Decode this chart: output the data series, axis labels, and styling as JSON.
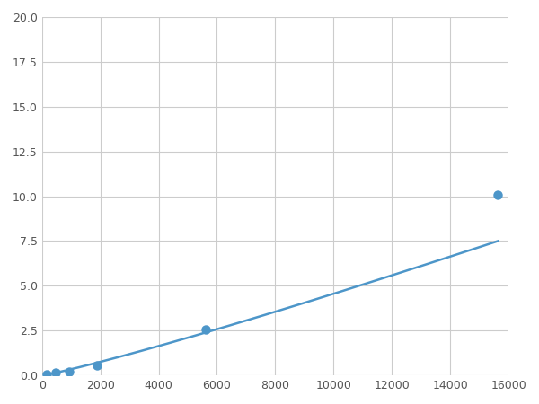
{
  "x_points": [
    156,
    469,
    938,
    1875,
    5625,
    15625
  ],
  "y_points": [
    0.07,
    0.14,
    0.2,
    0.55,
    2.55,
    10.1
  ],
  "marker_indices": [
    0,
    1,
    2,
    3,
    4,
    5
  ],
  "line_color": "#4d96c9",
  "marker_color": "#4d96c9",
  "marker_size": 6,
  "linewidth": 1.8,
  "xlim": [
    0,
    16000
  ],
  "ylim": [
    0,
    20.0
  ],
  "xticks": [
    0,
    2000,
    4000,
    6000,
    8000,
    10000,
    12000,
    14000,
    16000
  ],
  "yticks": [
    0.0,
    2.5,
    5.0,
    7.5,
    10.0,
    12.5,
    15.0,
    17.5,
    20.0
  ],
  "background_color": "#ffffff",
  "grid_color": "#cccccc",
  "figsize": [
    6.0,
    4.5
  ],
  "dpi": 100
}
